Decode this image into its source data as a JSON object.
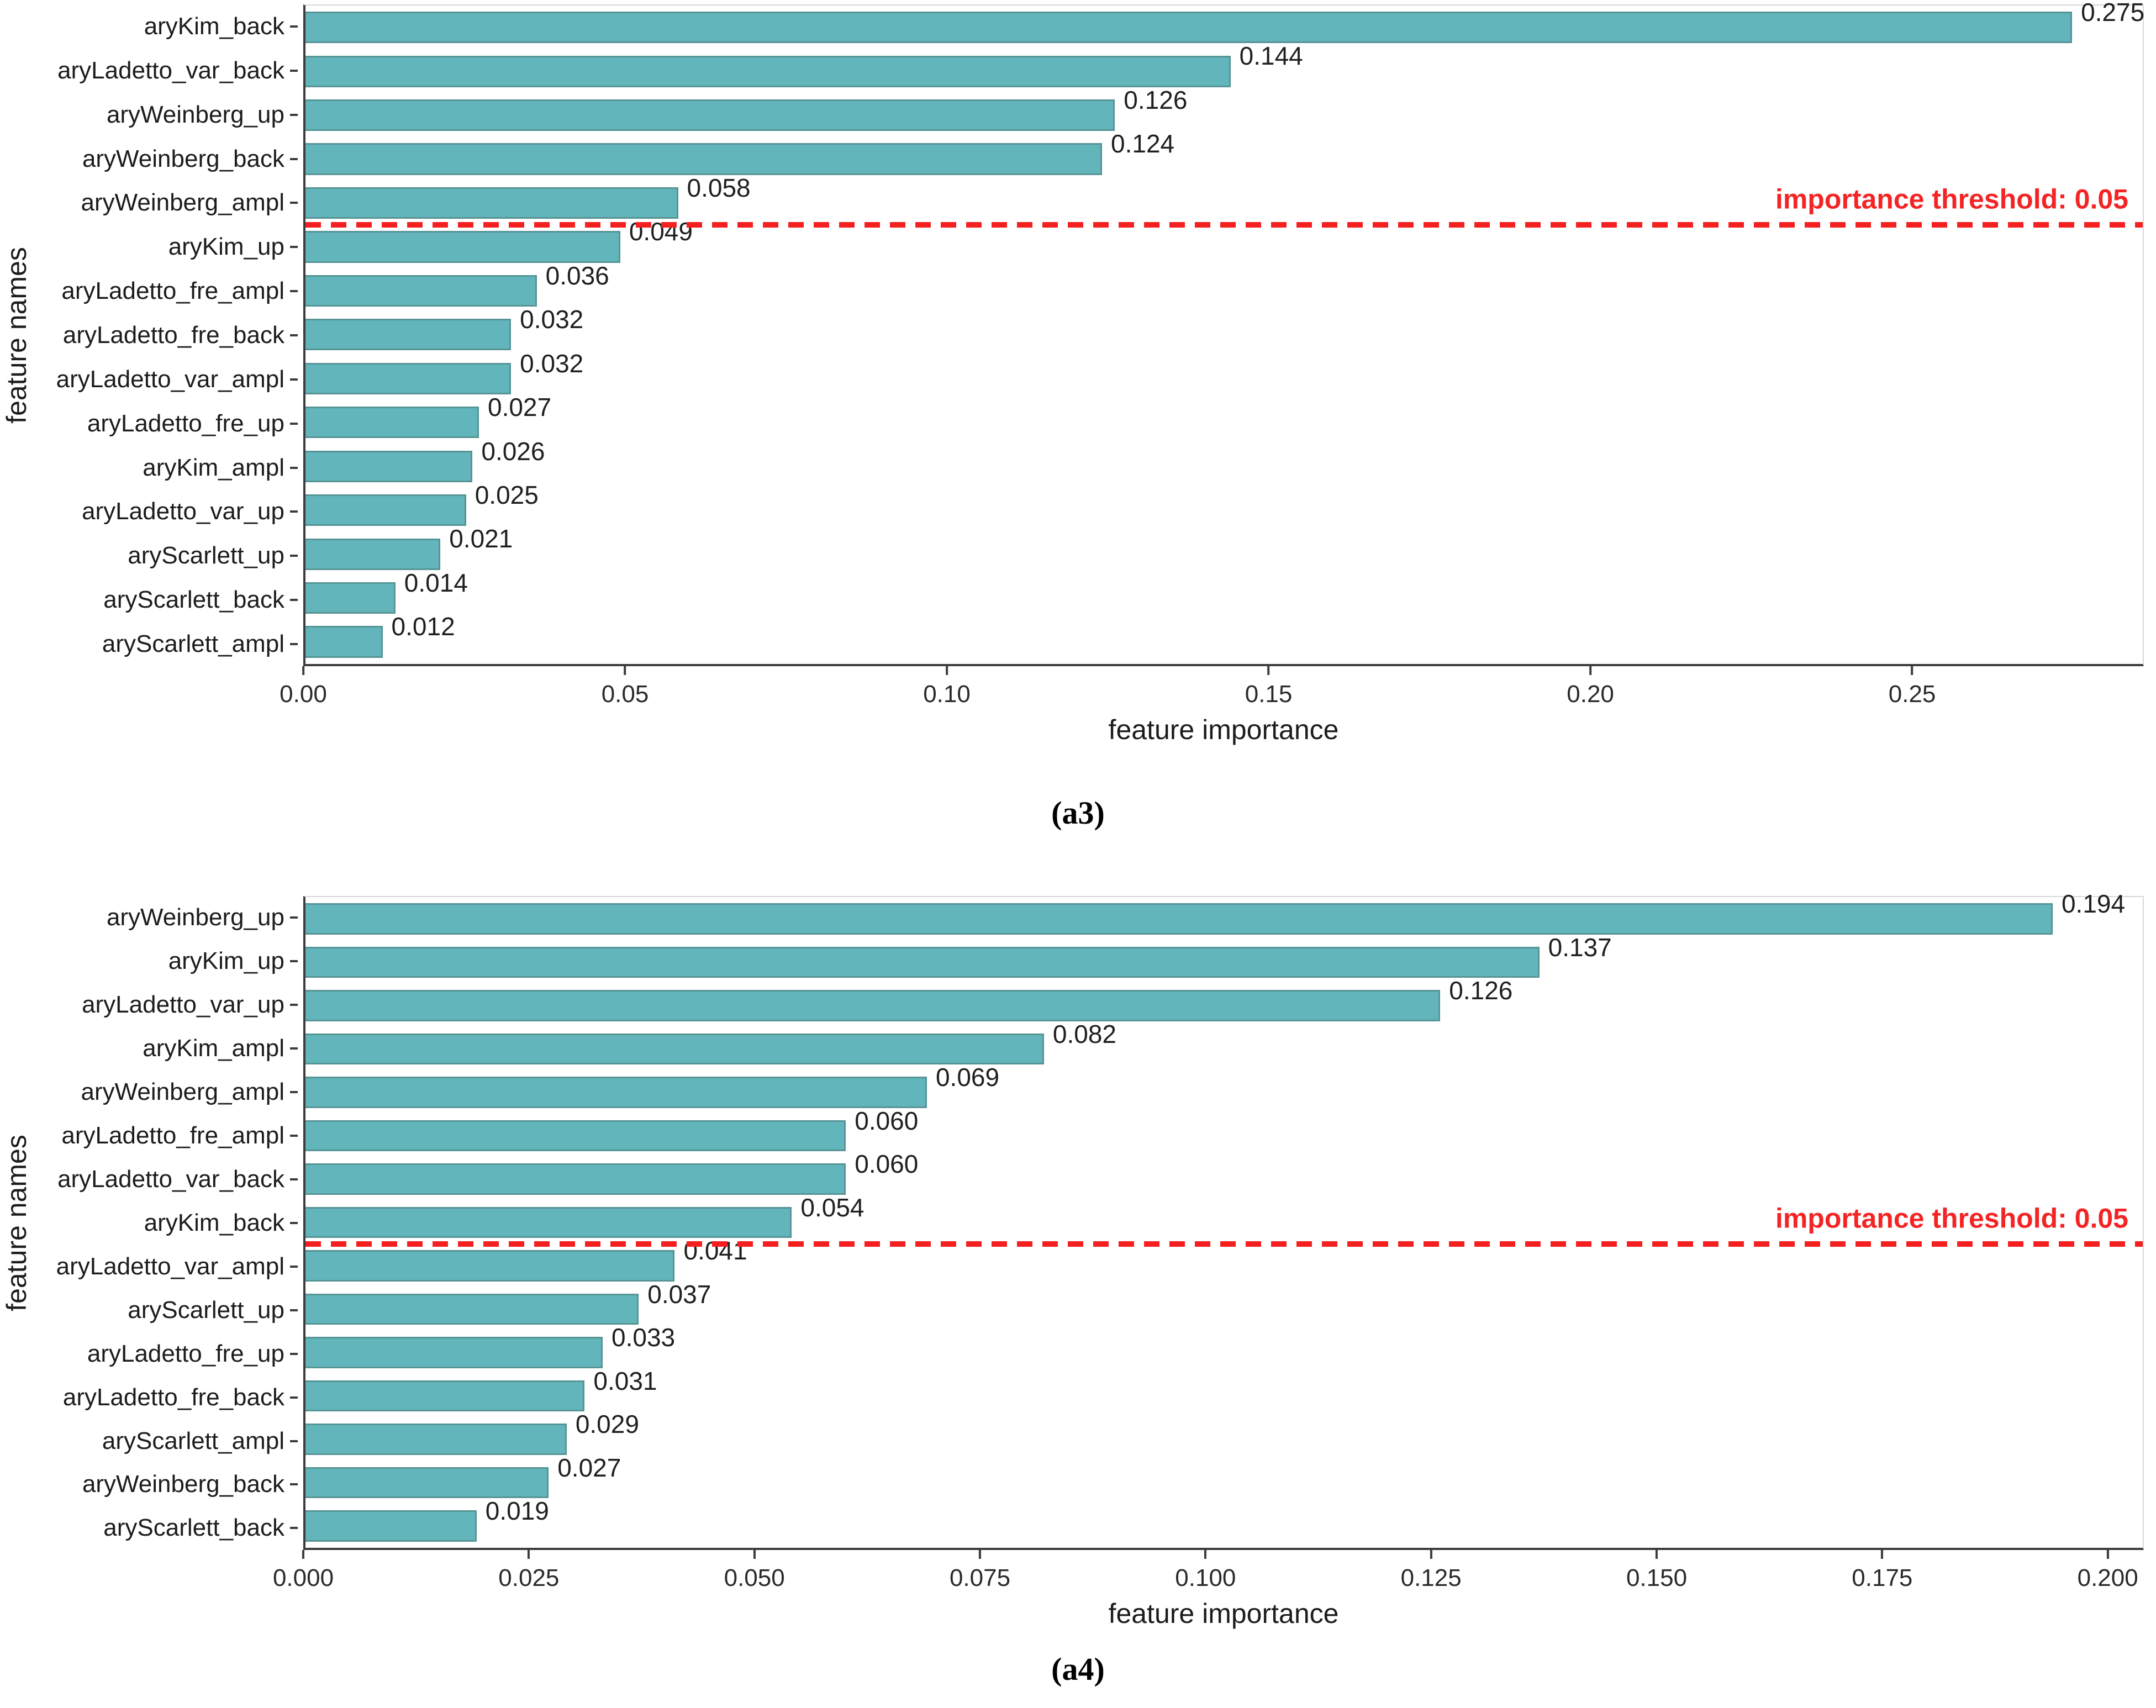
{
  "figure": {
    "threshold_label": "importance threshold: 0.05",
    "colors": {
      "bar_fill": "#62b6bb",
      "bar_edge": "#4d7878",
      "threshold_red": "#f42424",
      "axis_dark": "#3c3c3c",
      "axis_light": "#d8d8d8"
    }
  },
  "chart_data": [
    {
      "id": "a3",
      "type": "bar",
      "orientation": "horizontal",
      "caption": "(a3)",
      "xlabel": "feature importance",
      "ylabel": "feature names",
      "xlim": [
        0,
        0.286
      ],
      "grid": false,
      "xticks": [
        {
          "value": 0.0,
          "label": "0.00"
        },
        {
          "value": 0.05,
          "label": "0.05"
        },
        {
          "value": 0.1,
          "label": "0.10"
        },
        {
          "value": 0.15,
          "label": "0.15"
        },
        {
          "value": 0.2,
          "label": "0.20"
        },
        {
          "value": 0.25,
          "label": "0.25"
        }
      ],
      "threshold_value": 0.05,
      "threshold_after_index": 4,
      "categories": [
        "aryKim_back",
        "aryLadetto_var_back",
        "aryWeinberg_up",
        "aryWeinberg_back",
        "aryWeinberg_ampl",
        "aryKim_up",
        "aryLadetto_fre_ampl",
        "aryLadetto_fre_back",
        "aryLadetto_var_ampl",
        "aryLadetto_fre_up",
        "aryKim_ampl",
        "aryLadetto_var_up",
        "aryScarlett_up",
        "aryScarlett_back",
        "aryScarlett_ampl"
      ],
      "values": [
        0.275,
        0.144,
        0.126,
        0.124,
        0.058,
        0.049,
        0.036,
        0.032,
        0.032,
        0.027,
        0.026,
        0.025,
        0.021,
        0.014,
        0.012
      ],
      "value_labels": [
        "0.275",
        "0.144",
        "0.126",
        "0.124",
        "0.058",
        "0.049",
        "0.036",
        "0.032",
        "0.032",
        "0.027",
        "0.026",
        "0.025",
        "0.021",
        "0.014",
        "0.012"
      ]
    },
    {
      "id": "a4",
      "type": "bar",
      "orientation": "horizontal",
      "caption": "(a4)",
      "xlabel": "feature importance",
      "ylabel": "feature names",
      "xlim": [
        0,
        0.204
      ],
      "grid": false,
      "xticks": [
        {
          "value": 0.0,
          "label": "0.000"
        },
        {
          "value": 0.025,
          "label": "0.025"
        },
        {
          "value": 0.05,
          "label": "0.050"
        },
        {
          "value": 0.075,
          "label": "0.075"
        },
        {
          "value": 0.1,
          "label": "0.100"
        },
        {
          "value": 0.125,
          "label": "0.125"
        },
        {
          "value": 0.15,
          "label": "0.150"
        },
        {
          "value": 0.175,
          "label": "0.175"
        },
        {
          "value": 0.2,
          "label": "0.200"
        }
      ],
      "threshold_value": 0.05,
      "threshold_after_index": 7,
      "categories": [
        "aryWeinberg_up",
        "aryKim_up",
        "aryLadetto_var_up",
        "aryKim_ampl",
        "aryWeinberg_ampl",
        "aryLadetto_fre_ampl",
        "aryLadetto_var_back",
        "aryKim_back",
        "aryLadetto_var_ampl",
        "aryScarlett_up",
        "aryLadetto_fre_up",
        "aryLadetto_fre_back",
        "aryScarlett_ampl",
        "aryWeinberg_back",
        "aryScarlett_back"
      ],
      "values": [
        0.194,
        0.137,
        0.126,
        0.082,
        0.069,
        0.06,
        0.06,
        0.054,
        0.041,
        0.037,
        0.033,
        0.031,
        0.029,
        0.027,
        0.019
      ],
      "value_labels": [
        "0.194",
        "0.137",
        "0.126",
        "0.082",
        "0.069",
        "0.060",
        "0.060",
        "0.054",
        "0.041",
        "0.037",
        "0.033",
        "0.031",
        "0.029",
        "0.027",
        "0.019"
      ]
    }
  ]
}
